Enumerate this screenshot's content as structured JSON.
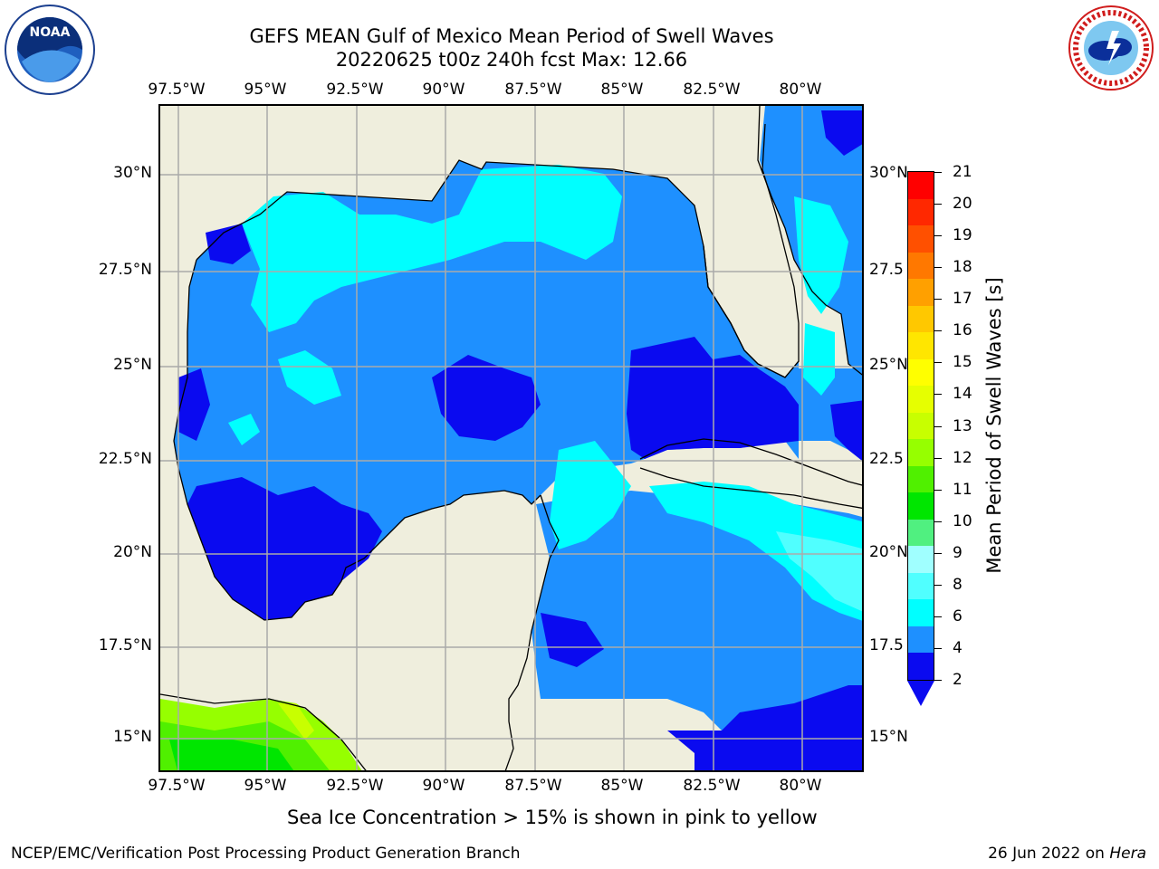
{
  "header": {
    "title": "GEFS MEAN Gulf of Mexico Mean Period of Swell Waves",
    "subtitle": "20220625 t00z 240h fcst   Max: 12.66"
  },
  "logos": {
    "left": "noaa-logo",
    "right": "national-weather-service-logo"
  },
  "map": {
    "lon_labels": [
      "97.5°W",
      "95°W",
      "92.5°W",
      "90°W",
      "87.5°W",
      "85°W",
      "82.5°W",
      "80°W"
    ],
    "lat_labels_left": [
      "30°N",
      "27.5°N",
      "25°N",
      "22.5°N",
      "20°N",
      "17.5°N",
      "15°N"
    ],
    "lat_labels_right": [
      "30°N",
      "27.5",
      "25°N",
      "22.5",
      "20°N",
      "17.5",
      "15°N"
    ],
    "land_color": "#efeedd",
    "grid_color": "#aaaaaa"
  },
  "colorbar": {
    "title": "Mean Period of Swell Waves [s]",
    "ticks": [
      "21",
      "20",
      "19",
      "18",
      "17",
      "16",
      "15",
      "14",
      "13",
      "12",
      "11",
      "10",
      "9",
      "8",
      "6",
      "4",
      "2"
    ],
    "colors": [
      "#ff0000",
      "#ff2800",
      "#ff5000",
      "#ff7800",
      "#ffa000",
      "#ffc800",
      "#ffe600",
      "#ffff00",
      "#e6ff00",
      "#c8ff00",
      "#96ff00",
      "#50f000",
      "#00e600",
      "#50f080",
      "#a0ffff",
      "#50ffff",
      "#00ffff",
      "#1e90ff",
      "#0a0af0"
    ]
  },
  "note": "Sea Ice Concentration > 15% is shown in pink to yellow",
  "footer": {
    "left": "NCEP/EMC/Verification Post Processing Product Generation Branch",
    "date": "26 Jun 2022 on",
    "machine": "Hera"
  }
}
